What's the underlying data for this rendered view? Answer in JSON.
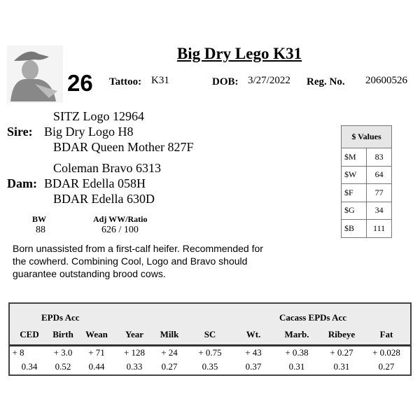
{
  "title": "Big Dry Lego K31",
  "lot_number": "26",
  "tattoo_label": "Tattoo:",
  "tattoo": "K31",
  "dob_label": "DOB:",
  "dob": "3/27/2022",
  "reg_label": "Reg. No.",
  "reg": "20600526",
  "sire": {
    "label": "Sire:",
    "grandsire": "SITZ Logo 12964",
    "name": "Big Dry Logo H8",
    "granddam": "BDAR Queen Mother 827F"
  },
  "dam": {
    "label": "Dam:",
    "grandsire": "Coleman Bravo 6313",
    "name": "BDAR Edella  058H",
    "granddam": "BDAR Edella  630D"
  },
  "weights": {
    "bw_label": "BW",
    "bw": "88",
    "ww_label": "Adj WW/Ratio",
    "ww": "626 / 100"
  },
  "dollar_values": {
    "header": "$ Values",
    "rows": [
      {
        "k": "$M",
        "v": "83"
      },
      {
        "k": "$W",
        "v": "64"
      },
      {
        "k": "$F",
        "v": "77"
      },
      {
        "k": "$G",
        "v": "34"
      },
      {
        "k": "$B",
        "v": "111"
      }
    ]
  },
  "note": "Born unassisted from a first-calf heifer.  Recommended for the cowherd. Combining Cool, Logo and Bravo should guarantee outstanding brood cows.",
  "epd": {
    "group1": "EPDs   Acc",
    "group2": "Cacass EPDs   Acc",
    "columns": [
      "CED",
      "Birth",
      "Wean",
      "Year",
      "Milk",
      "SC",
      "Wt.",
      "Marb.",
      "Ribeye",
      "Fat"
    ],
    "values": [
      "+ 8",
      "+ 3.0",
      "+ 71",
      "+ 128",
      "+ 24",
      "+ 0.75",
      "+ 43",
      "+ 0.38",
      "+ 0.27",
      "+ 0.028"
    ],
    "acc": [
      "0.34",
      "0.52",
      "0.44",
      "0.33",
      "0.27",
      "0.35",
      "0.37",
      "0.31",
      "0.31",
      "0.27"
    ]
  }
}
